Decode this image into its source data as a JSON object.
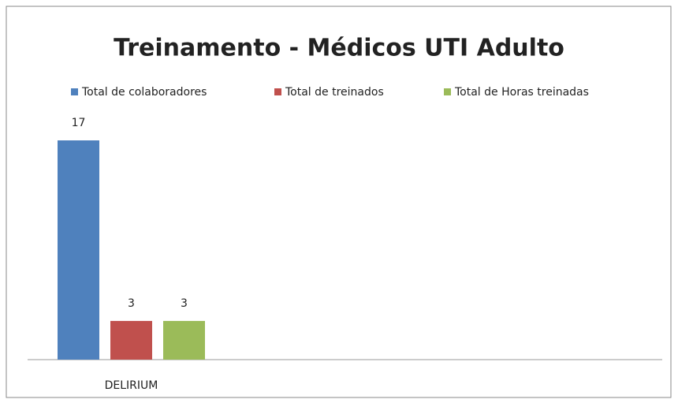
{
  "chart_data": {
    "type": "bar",
    "title": "Treinamento - Médicos UTI Adulto",
    "categories": [
      "DELIRIUM"
    ],
    "series": [
      {
        "name": "Total de colaboradores",
        "color": "#4f81bd",
        "values": [
          17
        ]
      },
      {
        "name": "Total de treinados",
        "color": "#c0504d",
        "values": [
          3
        ]
      },
      {
        "name": "Total de Horas treinadas",
        "color": "#9bbb59",
        "values": [
          3
        ]
      }
    ],
    "legend": "top"
  }
}
